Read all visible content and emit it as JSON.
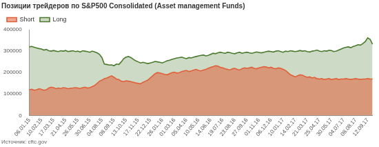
{
  "chart_data": {
    "type": "area",
    "title": "Позиции трейдеров по S&P500 Consolidated (Asset management Funds)",
    "source": "Источник: cftc.gov",
    "categories": [
      "06.01.15",
      null,
      null,
      null,
      null,
      "10.02.15",
      null,
      null,
      null,
      null,
      "17.03.15",
      null,
      null,
      null,
      null,
      "21.04.15",
      null,
      null,
      null,
      null,
      "26.05.15",
      null,
      null,
      null,
      null,
      "30.06.15",
      null,
      null,
      null,
      null,
      "04.08.15",
      null,
      null,
      null,
      null,
      "08.09.15",
      null,
      null,
      null,
      null,
      "13.10.15",
      null,
      null,
      null,
      null,
      "17.11.15",
      null,
      null,
      null,
      null,
      "22.12.15",
      null,
      null,
      null,
      null,
      "26.01.16",
      null,
      null,
      null,
      null,
      "01.03.16",
      null,
      null,
      null,
      null,
      "05.04.16",
      null,
      null,
      null,
      null,
      "10.05.16",
      null,
      null,
      null,
      null,
      "14.06.16",
      null,
      null,
      null,
      null,
      "19.07.16",
      null,
      null,
      null,
      null,
      "23.08.16",
      null,
      null,
      null,
      null,
      "27.09.16",
      null,
      null,
      null,
      null,
      "01.11.16",
      null,
      null,
      null,
      null,
      "06.12.16",
      null,
      null,
      null,
      null,
      "10.01.17",
      null,
      null,
      null,
      null,
      "14.02.17",
      null,
      null,
      null,
      null,
      "21.03.17",
      null,
      null,
      null,
      null,
      "25.04.17",
      null,
      null,
      null,
      null,
      "30.05.17",
      null,
      null,
      null,
      null,
      "04.07.17",
      null,
      null,
      null,
      null,
      "08.08.17",
      null,
      null,
      null,
      null,
      "12.09.17",
      null,
      null
    ],
    "series": [
      {
        "name": "Long",
        "color": "#4a7a2e",
        "values": [
          320000,
          322000,
          318000,
          315000,
          312000,
          310000,
          305000,
          308000,
          302000,
          300000,
          303000,
          300000,
          298000,
          302000,
          300000,
          303000,
          298000,
          300000,
          302000,
          298000,
          300000,
          296000,
          302000,
          300000,
          298000,
          295000,
          300000,
          296000,
          292000,
          285000,
          270000,
          240000,
          238000,
          235000,
          236000,
          232000,
          240000,
          238000,
          250000,
          265000,
          272000,
          275000,
          270000,
          262000,
          255000,
          250000,
          245000,
          248000,
          245000,
          242000,
          245000,
          248000,
          252000,
          250000,
          248000,
          245000,
          250000,
          255000,
          258000,
          262000,
          265000,
          268000,
          270000,
          272000,
          268000,
          265000,
          270000,
          268000,
          272000,
          275000,
          278000,
          280000,
          282000,
          278000,
          280000,
          285000,
          290000,
          288000,
          292000,
          295000,
          292000,
          290000,
          295000,
          293000,
          290000,
          288000,
          292000,
          295000,
          290000,
          293000,
          295000,
          292000,
          290000,
          293000,
          296000,
          294000,
          292000,
          295000,
          298000,
          300000,
          298000,
          296000,
          300000,
          302000,
          298000,
          295000,
          300000,
          298000,
          302000,
          300000,
          298000,
          300000,
          303000,
          300000,
          302000,
          298000,
          296000,
          300000,
          302000,
          305000,
          300000,
          298000,
          302000,
          300000,
          304000,
          303000,
          298000,
          300000,
          305000,
          310000,
          315000,
          318000,
          320000,
          316000,
          322000,
          325000,
          330000,
          328000,
          335000,
          345000,
          362000,
          355000,
          332000
        ]
      },
      {
        "name": "Short",
        "color": "#e0603a",
        "values": [
          120000,
          122000,
          118000,
          120000,
          125000,
          122000,
          118000,
          120000,
          128000,
          132000,
          130000,
          125000,
          128000,
          126000,
          130000,
          128000,
          125000,
          127000,
          128000,
          130000,
          128000,
          126000,
          130000,
          132000,
          128000,
          130000,
          135000,
          140000,
          150000,
          160000,
          165000,
          172000,
          175000,
          180000,
          185000,
          178000,
          170000,
          168000,
          160000,
          158000,
          162000,
          160000,
          158000,
          155000,
          152000,
          150000,
          148000,
          155000,
          160000,
          165000,
          175000,
          185000,
          195000,
          200000,
          198000,
          195000,
          192000,
          190000,
          195000,
          200000,
          202000,
          198000,
          200000,
          205000,
          208000,
          210000,
          205000,
          208000,
          212000,
          215000,
          210000,
          208000,
          212000,
          215000,
          220000,
          225000,
          228000,
          232000,
          230000,
          225000,
          222000,
          218000,
          215000,
          212000,
          218000,
          220000,
          215000,
          212000,
          218000,
          222000,
          220000,
          222000,
          225000,
          220000,
          218000,
          222000,
          225000,
          228000,
          226000,
          222000,
          225000,
          220000,
          218000,
          222000,
          220000,
          215000,
          210000,
          200000,
          190000,
          185000,
          180000,
          185000,
          190000,
          188000,
          182000,
          178000,
          180000,
          175000,
          178000,
          172000,
          170000,
          172000,
          168000,
          170000,
          172000,
          168000,
          170000,
          172000,
          168000,
          170000,
          170000,
          172000,
          170000,
          168000,
          170000,
          172000,
          170000,
          168000,
          170000,
          170000,
          172000,
          170000,
          170000
        ]
      }
    ],
    "ylim": [
      0,
      400000
    ],
    "yticks": [
      0,
      100000,
      200000,
      300000,
      400000
    ],
    "grid": false,
    "legend": "top-left"
  }
}
